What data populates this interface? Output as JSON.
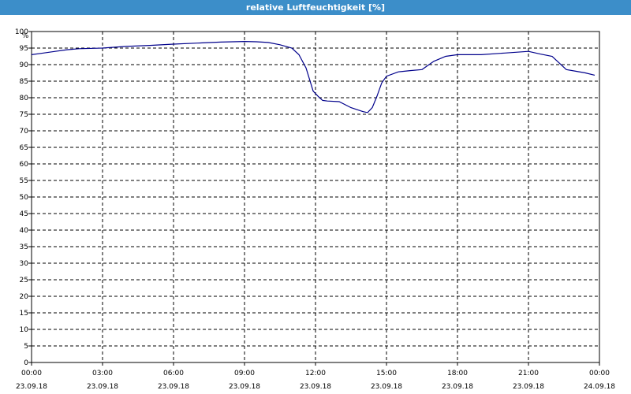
{
  "window": {
    "title": "relative Luftfeuchtigkeit [%]"
  },
  "chart_data": {
    "type": "line",
    "title": "relative Luftfeuchtigkeit [%]",
    "ylabel": "%",
    "xlabel": "",
    "ylim": [
      0,
      100
    ],
    "y_ticks": [
      0,
      5,
      10,
      15,
      20,
      25,
      30,
      35,
      40,
      45,
      50,
      55,
      60,
      65,
      70,
      75,
      80,
      85,
      90,
      95,
      100
    ],
    "grid": true,
    "line_color": "#00008b",
    "x_range_hours": [
      0,
      24
    ],
    "x_ticks": [
      {
        "hour": 0,
        "time": "00:00",
        "date": "23.09.18"
      },
      {
        "hour": 3,
        "time": "03:00",
        "date": "23.09.18"
      },
      {
        "hour": 6,
        "time": "06:00",
        "date": "23.09.18"
      },
      {
        "hour": 9,
        "time": "09:00",
        "date": "23.09.18"
      },
      {
        "hour": 12,
        "time": "12:00",
        "date": "23.09.18"
      },
      {
        "hour": 15,
        "time": "15:00",
        "date": "23.09.18"
      },
      {
        "hour": 18,
        "time": "18:00",
        "date": "23.09.18"
      },
      {
        "hour": 21,
        "time": "21:00",
        "date": "23.09.18"
      },
      {
        "hour": 24,
        "time": "00:00",
        "date": "24.09.18"
      }
    ],
    "series": [
      {
        "x": [
          0,
          0.5,
          1,
          1.5,
          2,
          3,
          4,
          5,
          6,
          7,
          8,
          9,
          9.5,
          10,
          10.5,
          11,
          11.3,
          11.6,
          11.9,
          12.1,
          12.3,
          12.5,
          13,
          13.5,
          14,
          14.2,
          14.4,
          14.6,
          14.8,
          15,
          15.5,
          16,
          16.5,
          17,
          17.5,
          18,
          19,
          20,
          21,
          21.5,
          22,
          22.3,
          22.6,
          23,
          23.4,
          23.8
        ],
        "y": [
          93,
          93.5,
          94,
          94.5,
          94.8,
          95,
          95.5,
          95.8,
          96.2,
          96.5,
          96.8,
          97,
          96.9,
          96.7,
          96,
          95,
          93,
          89,
          82,
          80.5,
          79.2,
          79,
          78.8,
          77,
          75.8,
          75.5,
          77,
          80.5,
          84.5,
          86.5,
          87.8,
          88.2,
          88.5,
          91,
          92.5,
          93,
          93,
          93.5,
          94,
          93.2,
          92.5,
          90.5,
          88.5,
          88,
          87.5,
          86.8
        ]
      }
    ]
  }
}
